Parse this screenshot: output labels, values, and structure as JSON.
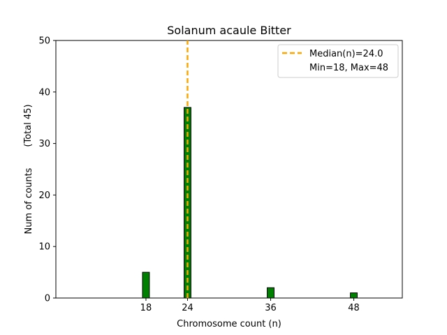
{
  "chart_data": {
    "type": "bar",
    "title": "Solanum acaule Bitter",
    "xlabel": "Chromosome count (n)",
    "ylabel": "Num of counts",
    "ylabel_total": "(Total 45)",
    "xlim": [
      5,
      55
    ],
    "ylim": [
      0,
      50
    ],
    "x_ticks": [
      18,
      24,
      36,
      48
    ],
    "y_ticks": [
      0,
      10,
      20,
      30,
      40,
      50
    ],
    "bar_width": 1,
    "series": [
      {
        "x": [
          18,
          24,
          36,
          48,
          51
        ],
        "values": [
          5,
          37,
          2,
          1,
          0
        ]
      }
    ],
    "colors": {
      "bar_fill": "#008000",
      "bar_edge": "#000000",
      "median_line": "#ffa500"
    },
    "median": {
      "value": 24.0,
      "label": "Median(n)=24.0"
    },
    "range_label": "Min=18, Max=48",
    "legend": {
      "placement": "top-right",
      "entries": [
        "Median(n)=24.0",
        "Min=18, Max=48"
      ]
    },
    "grid": false
  }
}
